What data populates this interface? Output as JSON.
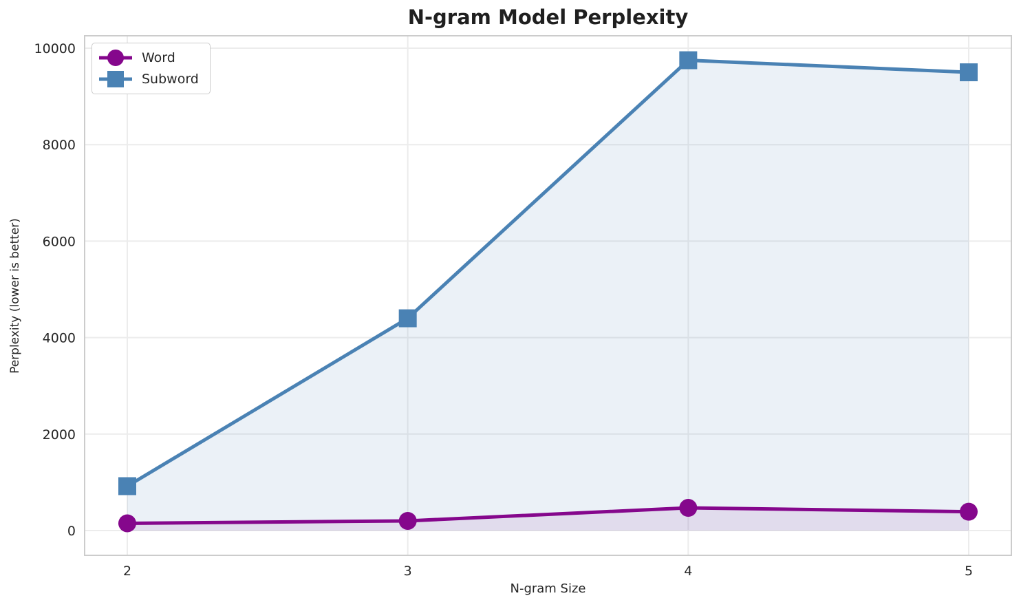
{
  "chart_data": {
    "type": "line",
    "title": "N-gram Model Perplexity",
    "xlabel": "N-gram Size",
    "ylabel": "Perplexity (lower is better)",
    "categories": [
      2,
      3,
      4,
      5
    ],
    "series": [
      {
        "name": "Word",
        "values": [
          150,
          200,
          470,
          390
        ],
        "color": "#85078C",
        "fill_color": "rgba(133, 7, 140, 0.09)",
        "marker": "circle"
      },
      {
        "name": "Subword",
        "values": [
          920,
          4400,
          9750,
          9500
        ],
        "color": "#4A82B4",
        "fill_color": "rgba(74, 130, 180, 0.11)",
        "marker": "square"
      }
    ],
    "y_ticks": [
      0,
      2000,
      4000,
      6000,
      8000,
      10000
    ],
    "ylim": [
      -514,
      10257
    ],
    "grid": true,
    "grid_color": "#ECECEC",
    "spine_color": "#CCCCCC",
    "tick_label_color": "#262626",
    "legend_position": "upper left"
  }
}
